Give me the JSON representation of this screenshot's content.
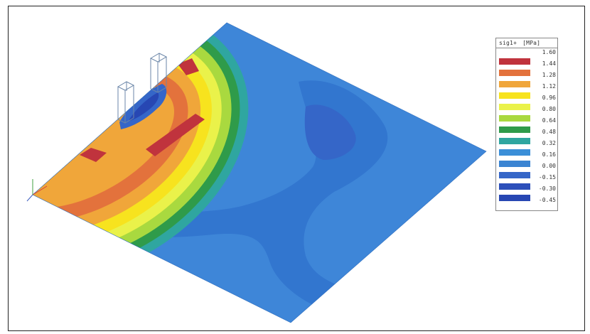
{
  "legend": {
    "quantity": "sig1+",
    "unit": "[MPa]",
    "levels": [
      {
        "value": "1.60",
        "color": ""
      },
      {
        "value": "1.44",
        "color": "#c0333d"
      },
      {
        "value": "1.28",
        "color": "#e3723c"
      },
      {
        "value": "1.12",
        "color": "#f0a63a"
      },
      {
        "value": "0.96",
        "color": "#f7e31e"
      },
      {
        "value": "0.80",
        "color": "#eaf24a"
      },
      {
        "value": "0.64",
        "color": "#a9d93f"
      },
      {
        "value": "0.48",
        "color": "#2f9b4a"
      },
      {
        "value": "0.32",
        "color": "#2fa6a0"
      },
      {
        "value": "0.16",
        "color": "#3b8fd8"
      },
      {
        "value": "0.00",
        "color": "#3a84d2"
      },
      {
        "value": "-0.15",
        "color": "#3566c8"
      },
      {
        "value": "-0.30",
        "color": "#2c4fba"
      },
      {
        "value": "-0.45",
        "color": "#2747b3"
      }
    ]
  },
  "colors": {
    "slab": "#3e86d8",
    "slab_low": "#3276cf",
    "column_outline": "#6b86a8",
    "axis_x": "#d04040",
    "axis_y": "#4060c0",
    "axis_z": "#40a040"
  }
}
